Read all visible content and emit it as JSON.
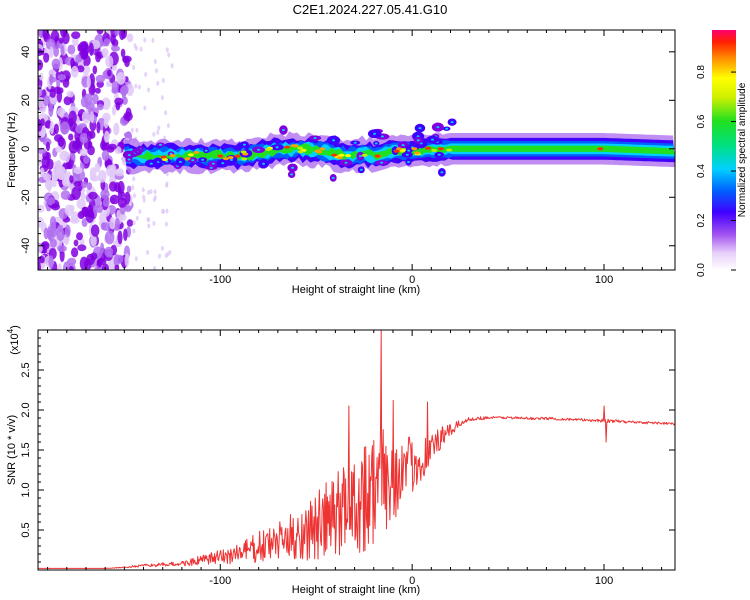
{
  "title": "C2E1.2024.227.05.41.G10",
  "colors": {
    "snr_line": "#ee3333",
    "spectrogram_palette": [
      "#ffffff",
      "#e0c8f8",
      "#b070f0",
      "#8000e0",
      "#4000ff",
      "#0060ff",
      "#00d0ff",
      "#00e0a0",
      "#20e020",
      "#c0f000",
      "#ffff00",
      "#ffa000",
      "#ff3000",
      "#ff0060"
    ]
  },
  "chart_data": [
    {
      "type": "heatmap",
      "name": "spectrogram",
      "xlabel": "Height of straight line (km)",
      "ylabel": "Frequency (Hz)",
      "xlim": [
        -195,
        137
      ],
      "ylim": [
        -50,
        49
      ],
      "xticks": [
        -100,
        0,
        100
      ],
      "yticks": [
        -40,
        -20,
        0,
        20,
        40
      ],
      "grid": false,
      "ridge": [
        [
          -150,
          -3
        ],
        [
          -130,
          -3
        ],
        [
          -110,
          -3
        ],
        [
          -90,
          -3
        ],
        [
          -75,
          -1
        ],
        [
          -60,
          0
        ],
        [
          -45,
          -1
        ],
        [
          -35,
          -3
        ],
        [
          -25,
          -2
        ],
        [
          -20,
          -3
        ],
        [
          -10,
          -1
        ],
        [
          0,
          -1
        ],
        [
          20,
          0
        ],
        [
          60,
          0
        ],
        [
          100,
          0
        ],
        [
          135,
          -1
        ]
      ],
      "colorbar": {
        "label": "Normalized spectral amplitude",
        "range": [
          0,
          0.97
        ],
        "ticks": [
          0.0,
          0.2,
          0.4,
          0.6,
          0.8
        ]
      }
    },
    {
      "type": "line",
      "name": "snr",
      "xlabel": "Height of straight line (km)",
      "ylabel": "SNR (10 * v/v)",
      "yscale_label": "(x10",
      "yscale_exponent": "4",
      "xlim": [
        -195,
        137
      ],
      "ylim": [
        0,
        3.0
      ],
      "xticks": [
        -100,
        0,
        100
      ],
      "yticks": [
        0.5,
        1.0,
        1.5,
        2.0,
        2.5
      ],
      "ytick_labels": [
        "0.5",
        "1.0",
        "1.5",
        "2.0",
        "2.5"
      ],
      "grid": false,
      "envelope": {
        "x": [
          -195,
          -160,
          -150,
          -140,
          -130,
          -120,
          -110,
          -100,
          -90,
          -80,
          -70,
          -60,
          -50,
          -40,
          -35,
          -30,
          -25,
          -20,
          -15,
          -10,
          -5,
          0,
          5,
          10,
          15,
          20,
          25,
          30,
          40,
          50,
          60,
          70,
          80,
          90,
          100,
          110,
          120,
          130,
          137
        ],
        "baseline": [
          0.02,
          0.02,
          0.03,
          0.05,
          0.06,
          0.07,
          0.1,
          0.13,
          0.17,
          0.22,
          0.28,
          0.34,
          0.4,
          0.5,
          0.58,
          0.65,
          0.72,
          0.8,
          0.9,
          0.98,
          1.08,
          1.2,
          1.3,
          1.45,
          1.6,
          1.72,
          1.82,
          1.88,
          1.9,
          1.9,
          1.89,
          1.89,
          1.88,
          1.87,
          1.86,
          1.85,
          1.84,
          1.83,
          1.82
        ],
        "noise": [
          0.0,
          0.0,
          0.01,
          0.02,
          0.03,
          0.04,
          0.08,
          0.12,
          0.18,
          0.25,
          0.3,
          0.4,
          0.55,
          0.7,
          0.8,
          0.85,
          0.9,
          0.95,
          0.85,
          0.7,
          0.55,
          0.45,
          0.35,
          0.28,
          0.18,
          0.1,
          0.05,
          0.03,
          0.02,
          0.02,
          0.02,
          0.02,
          0.02,
          0.02,
          0.03,
          0.02,
          0.02,
          0.02,
          0.02
        ]
      },
      "peaks": [
        {
          "x": -33,
          "y": 2.05
        },
        {
          "x": -16,
          "y": 3.0
        },
        {
          "x": -10,
          "y": 2.12
        },
        {
          "x": 8,
          "y": 2.1
        },
        {
          "x": 100,
          "y": 2.05
        },
        {
          "x": 101,
          "y": 1.6
        }
      ]
    }
  ]
}
